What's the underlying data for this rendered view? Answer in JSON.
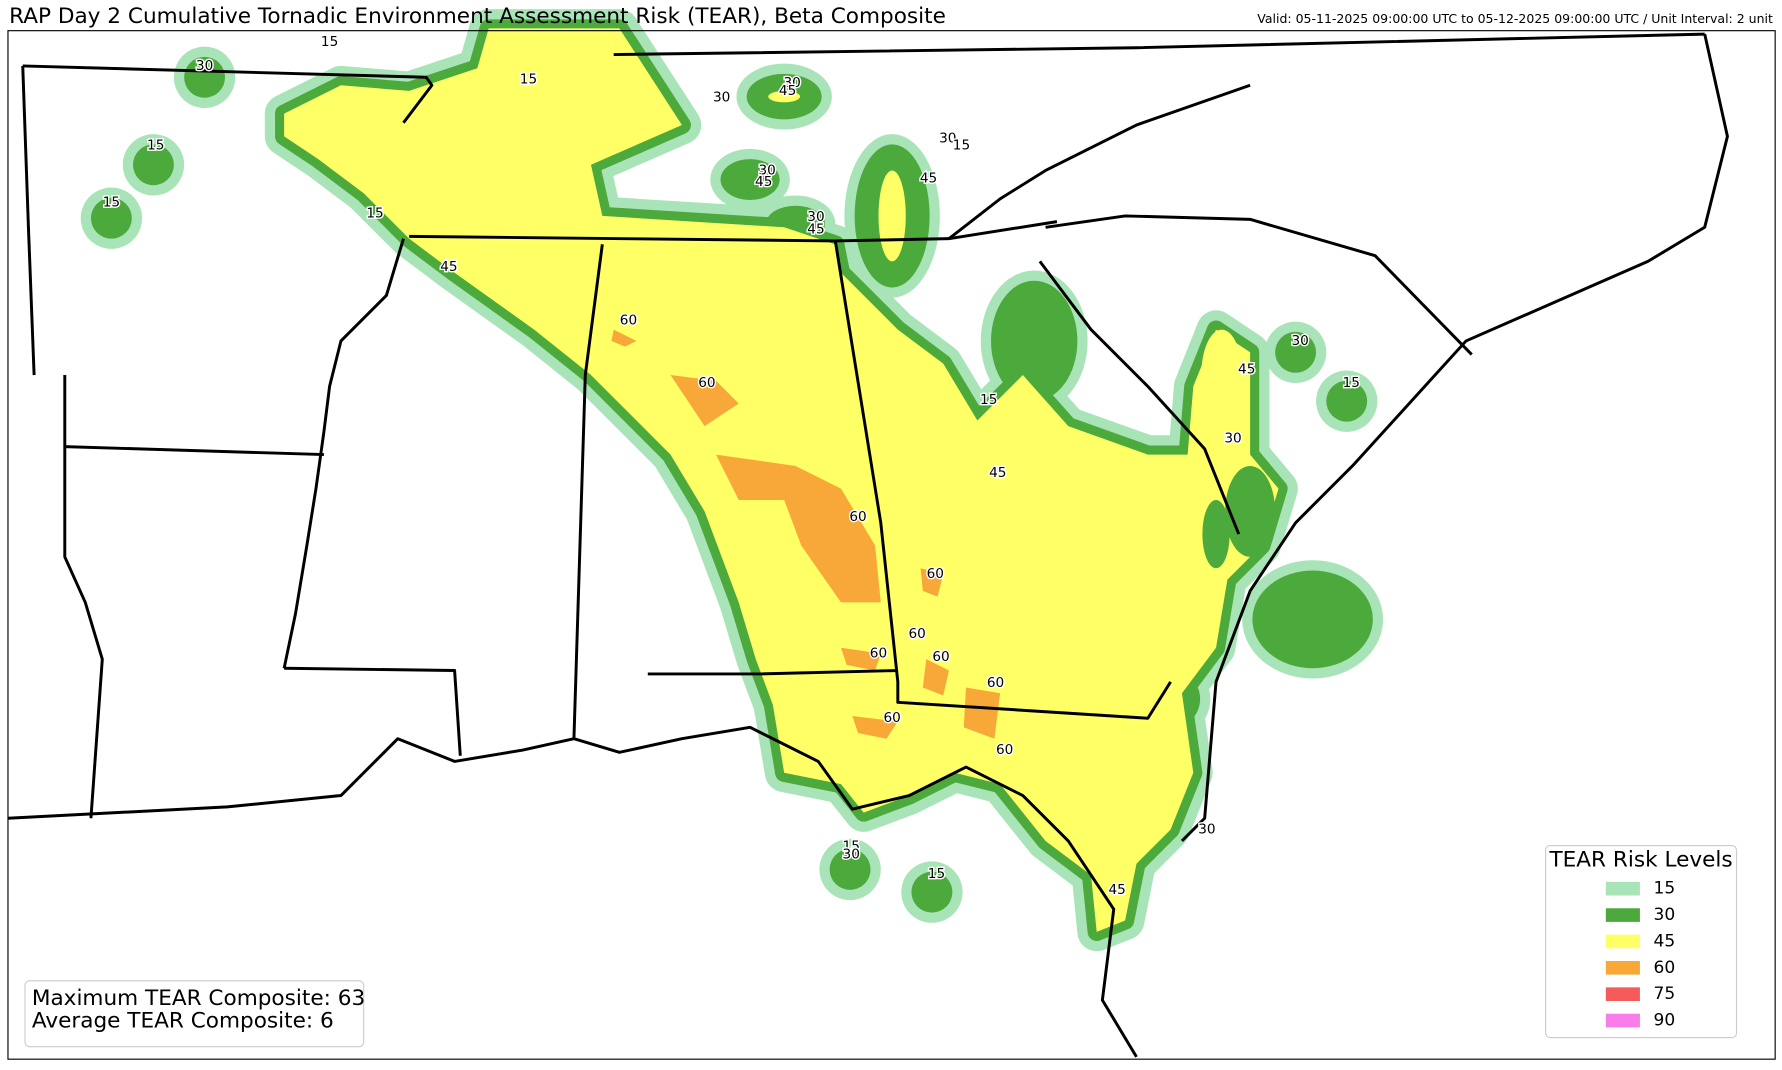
{
  "header": {
    "title": "RAP Day 2 Cumulative Tornadic Environment Assessment Risk (TEAR), Beta Composite",
    "valid": "Valid: 05-11-2025 09:00:00 UTC to 05-12-2025 09:00:00 UTC / Unit Interval: 2 unit"
  },
  "legend": {
    "title": "TEAR Risk Levels",
    "levels": [
      {
        "label": "15",
        "color": "#a8e4b8"
      },
      {
        "label": "30",
        "color": "#4caa3c"
      },
      {
        "label": "45",
        "color": "#ffff66"
      },
      {
        "label": "60",
        "color": "#f8a838"
      },
      {
        "label": "75",
        "color": "#f55b5b"
      },
      {
        "label": "90",
        "color": "#f87de8"
      }
    ]
  },
  "stats": [
    "Maximum TEAR Composite: 63",
    "Average TEAR Composite: 6"
  ],
  "map": {
    "contour_labels": [
      "30",
      "15",
      "15",
      "30",
      "30",
      "45",
      "15",
      "15",
      "15",
      "45",
      "60",
      "60",
      "30",
      "15",
      "45",
      "30",
      "45",
      "30",
      "45",
      "15",
      "45",
      "60",
      "60",
      "60",
      "60",
      "60",
      "60",
      "60",
      "60",
      "30",
      "45",
      "15",
      "30",
      "30",
      "45",
      "15",
      "30",
      "15"
    ]
  }
}
